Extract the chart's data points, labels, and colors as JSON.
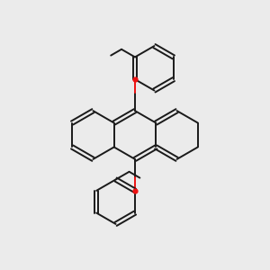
{
  "bg_color": "#ebebeb",
  "bond_color": "#1a1a1a",
  "oxygen_color": "#ee1111",
  "line_width": 1.4,
  "dbo": 0.035,
  "R": 0.42,
  "scale": 1.0
}
